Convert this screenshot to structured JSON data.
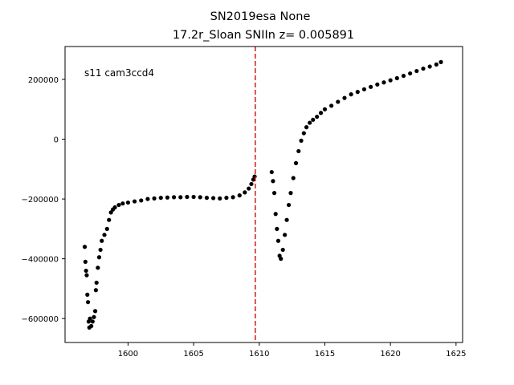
{
  "chart_data": {
    "type": "scatter",
    "title": "SN2019esa  None",
    "subtitle": "17.2r_Sloan SNIIn z= 0.005891",
    "xlabel": "",
    "ylabel": "",
    "xlim": [
      1595.2,
      1625.5
    ],
    "ylim": [
      -680000,
      310000
    ],
    "x_ticks": [
      1600,
      1605,
      1610,
      1615,
      1620,
      1625
    ],
    "x_tick_labels": [
      "1600",
      "1605",
      "1610",
      "1615",
      "1620",
      "1625"
    ],
    "y_ticks": [
      200000,
      0,
      -200000,
      -400000,
      -600000
    ],
    "y_tick_labels": [
      "200000",
      "0",
      "−200000",
      "−400000",
      "−600000"
    ],
    "annotation": "s11 cam3ccd4",
    "grid": false,
    "vline": {
      "x": 1609.7,
      "color": "#d62728",
      "style": "dashed"
    },
    "marker_color": "#000000",
    "series": [
      {
        "points": [
          [
            1596.7,
            -360000
          ],
          [
            1596.75,
            -410000
          ],
          [
            1596.8,
            -440000
          ],
          [
            1596.85,
            -455000
          ],
          [
            1596.9,
            -520000
          ],
          [
            1596.95,
            -545000
          ],
          [
            1597.0,
            -610000
          ],
          [
            1597.05,
            -630000
          ],
          [
            1597.1,
            -600000
          ],
          [
            1597.2,
            -625000
          ],
          [
            1597.3,
            -610000
          ],
          [
            1597.4,
            -595000
          ],
          [
            1597.5,
            -575000
          ],
          [
            1597.55,
            -505000
          ],
          [
            1597.6,
            -480000
          ],
          [
            1597.7,
            -430000
          ],
          [
            1597.8,
            -395000
          ],
          [
            1597.9,
            -370000
          ],
          [
            1598.0,
            -340000
          ],
          [
            1598.2,
            -320000
          ],
          [
            1598.4,
            -300000
          ],
          [
            1598.55,
            -270000
          ],
          [
            1598.7,
            -245000
          ],
          [
            1598.85,
            -235000
          ],
          [
            1599.0,
            -228000
          ],
          [
            1599.3,
            -220000
          ],
          [
            1599.6,
            -215000
          ],
          [
            1600.0,
            -212000
          ],
          [
            1600.5,
            -208000
          ],
          [
            1601.0,
            -205000
          ],
          [
            1601.5,
            -200000
          ],
          [
            1602.0,
            -198000
          ],
          [
            1602.5,
            -196000
          ],
          [
            1603.0,
            -195000
          ],
          [
            1603.5,
            -194000
          ],
          [
            1604.0,
            -194000
          ],
          [
            1604.5,
            -193000
          ],
          [
            1605.0,
            -193000
          ],
          [
            1605.5,
            -194000
          ],
          [
            1606.0,
            -196000
          ],
          [
            1606.5,
            -197000
          ],
          [
            1607.0,
            -198000
          ],
          [
            1607.5,
            -196000
          ],
          [
            1608.0,
            -194000
          ],
          [
            1608.5,
            -188000
          ],
          [
            1608.9,
            -178000
          ],
          [
            1609.2,
            -165000
          ],
          [
            1609.4,
            -150000
          ],
          [
            1609.55,
            -135000
          ],
          [
            1609.65,
            -125000
          ],
          [
            1610.95,
            -110000
          ],
          [
            1611.05,
            -140000
          ],
          [
            1611.15,
            -180000
          ],
          [
            1611.25,
            -250000
          ],
          [
            1611.35,
            -300000
          ],
          [
            1611.45,
            -340000
          ],
          [
            1611.55,
            -390000
          ],
          [
            1611.65,
            -400000
          ],
          [
            1611.8,
            -370000
          ],
          [
            1611.95,
            -320000
          ],
          [
            1612.1,
            -270000
          ],
          [
            1612.25,
            -220000
          ],
          [
            1612.4,
            -180000
          ],
          [
            1612.6,
            -130000
          ],
          [
            1612.8,
            -80000
          ],
          [
            1613.0,
            -40000
          ],
          [
            1613.2,
            -5000
          ],
          [
            1613.4,
            20000
          ],
          [
            1613.6,
            40000
          ],
          [
            1613.85,
            55000
          ],
          [
            1614.1,
            65000
          ],
          [
            1614.4,
            75000
          ],
          [
            1614.7,
            88000
          ],
          [
            1615.0,
            100000
          ],
          [
            1615.5,
            112000
          ],
          [
            1616.0,
            125000
          ],
          [
            1616.5,
            138000
          ],
          [
            1617.0,
            150000
          ],
          [
            1617.5,
            158000
          ],
          [
            1618.0,
            167000
          ],
          [
            1618.5,
            175000
          ],
          [
            1619.0,
            183000
          ],
          [
            1619.5,
            190000
          ],
          [
            1620.0,
            197000
          ],
          [
            1620.5,
            204000
          ],
          [
            1621.0,
            212000
          ],
          [
            1621.5,
            220000
          ],
          [
            1622.0,
            228000
          ],
          [
            1622.5,
            236000
          ],
          [
            1623.0,
            243000
          ],
          [
            1623.5,
            250000
          ],
          [
            1623.85,
            258000
          ]
        ]
      }
    ]
  }
}
